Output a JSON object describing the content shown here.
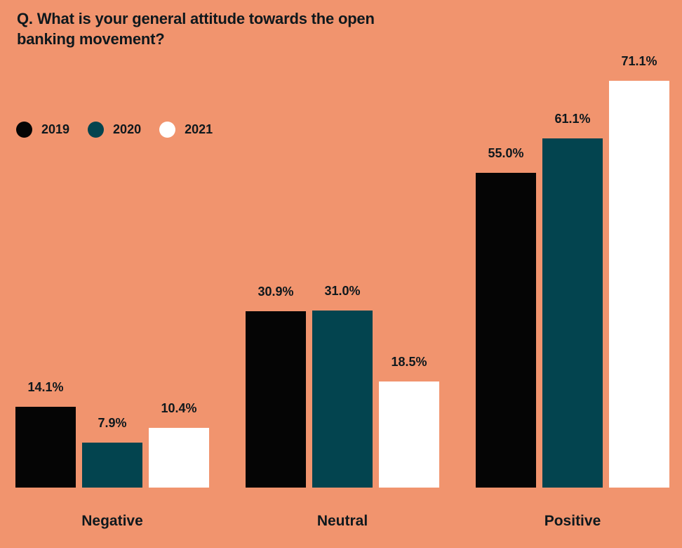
{
  "title_lines": [
    "Q. What is your general attitude towards the open",
    "banking movement?"
  ],
  "colors": {
    "background": "#F1946E",
    "text": "#0E181D",
    "series_2019": "#050505",
    "series_2020": "#03444F",
    "series_2021": "#FFFFFF"
  },
  "chart_data": {
    "type": "bar",
    "title": "Q. What is your general attitude towards the open banking movement?",
    "categories": [
      "Negative",
      "Neutral",
      "Positive"
    ],
    "series": [
      {
        "name": "2019",
        "color": "#050505",
        "values": [
          14.1,
          30.9,
          55.0
        ],
        "labels": [
          "14.1%",
          "30.9%",
          "55.0%"
        ]
      },
      {
        "name": "2020",
        "color": "#03444F",
        "values": [
          7.9,
          31.0,
          61.1
        ],
        "labels": [
          "7.9%",
          "31.0%",
          "61.1%"
        ]
      },
      {
        "name": "2021",
        "color": "#FFFFFF",
        "values": [
          10.4,
          18.5,
          71.1
        ],
        "labels": [
          "10.4%",
          "18.5%",
          "71.1%"
        ]
      }
    ],
    "value_suffix": "%",
    "ylim": [
      0,
      75
    ],
    "grid": false,
    "legend_position": "top-left",
    "xlabel": "",
    "ylabel": ""
  }
}
